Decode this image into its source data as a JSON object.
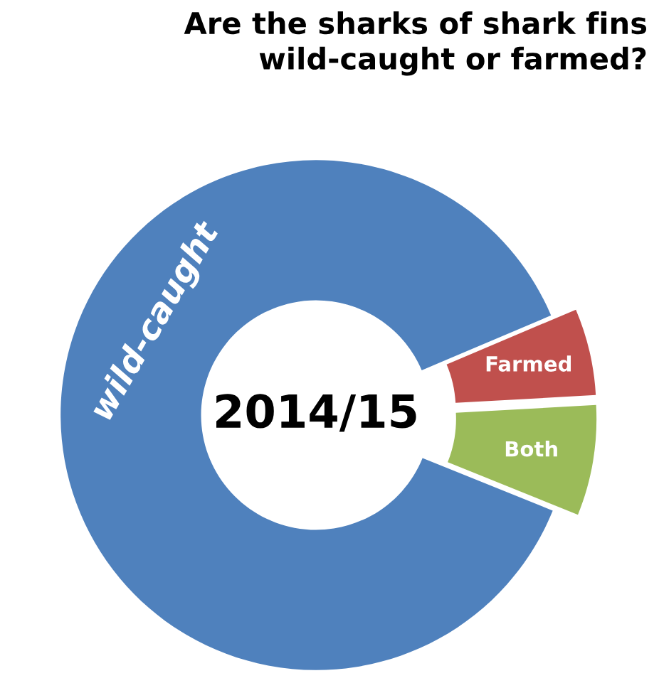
{
  "chart_data": {
    "type": "donut",
    "title": "Are the sharks of shark fins\nwild-caught or farmed?",
    "categories": [
      "wild-caught",
      "Farmed",
      "Both"
    ],
    "values": [
      87.5,
      5.5,
      7
    ],
    "colors": [
      "#4f81bd",
      "#c0504d",
      "#9bbb59"
    ],
    "annotations": [
      "2014/15"
    ],
    "legend": false
  }
}
